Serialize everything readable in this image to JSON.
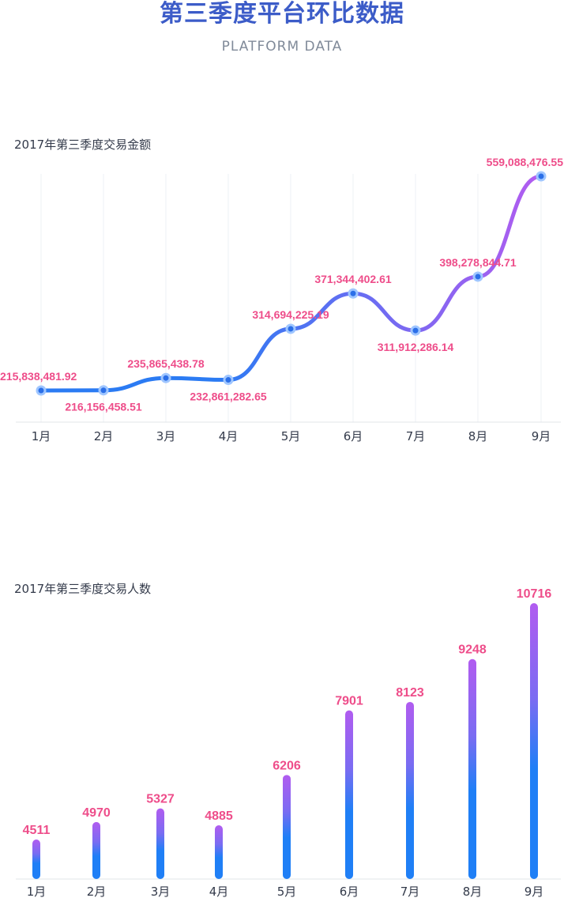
{
  "header": {
    "title": "第三季度平台环比数据",
    "subtitle": "PLATFORM DATA"
  },
  "colors": {
    "line_start": "#2b7bf3",
    "line_end": "#b35cf0",
    "bar_bottom": "#1f7ff6",
    "bar_top": "#b15cf0",
    "label": "#ee4d8a",
    "point_outer": "#9fc6ff",
    "point_inner": "#2b6fe8"
  },
  "chart_data": [
    {
      "type": "line",
      "title": "2017年第三季度交易金额",
      "categories": [
        "1月",
        "2月",
        "3月",
        "4月",
        "5月",
        "6月",
        "7月",
        "8月",
        "9月"
      ],
      "values": [
        215838481.92,
        216156458.51,
        235865438.78,
        232861282.65,
        314694225.19,
        371344402.61,
        311912286.14,
        398278844.71,
        559088476.55
      ],
      "value_labels": [
        "215,838,481.92",
        "216,156,458.51",
        "235,865,438.78",
        "232,861,282.65",
        "314,694,225.19",
        "371,344,402.61",
        "311,912,286.14",
        "398,278,844.71",
        "559,088,476.55"
      ],
      "grid": "vertical",
      "smooth": true
    },
    {
      "type": "bar",
      "title": "2017年第三季度交易人数",
      "categories": [
        "1月",
        "2月",
        "3月",
        "4月",
        "5月",
        "6月",
        "7月",
        "8月",
        "9月"
      ],
      "values": [
        4511,
        4970,
        5327,
        4885,
        6206,
        7901,
        8123,
        9248,
        10716
      ],
      "value_labels": [
        "4511",
        "4970",
        "5327",
        "4885",
        "6206",
        "7901",
        "8123",
        "9248",
        "10716"
      ]
    }
  ]
}
